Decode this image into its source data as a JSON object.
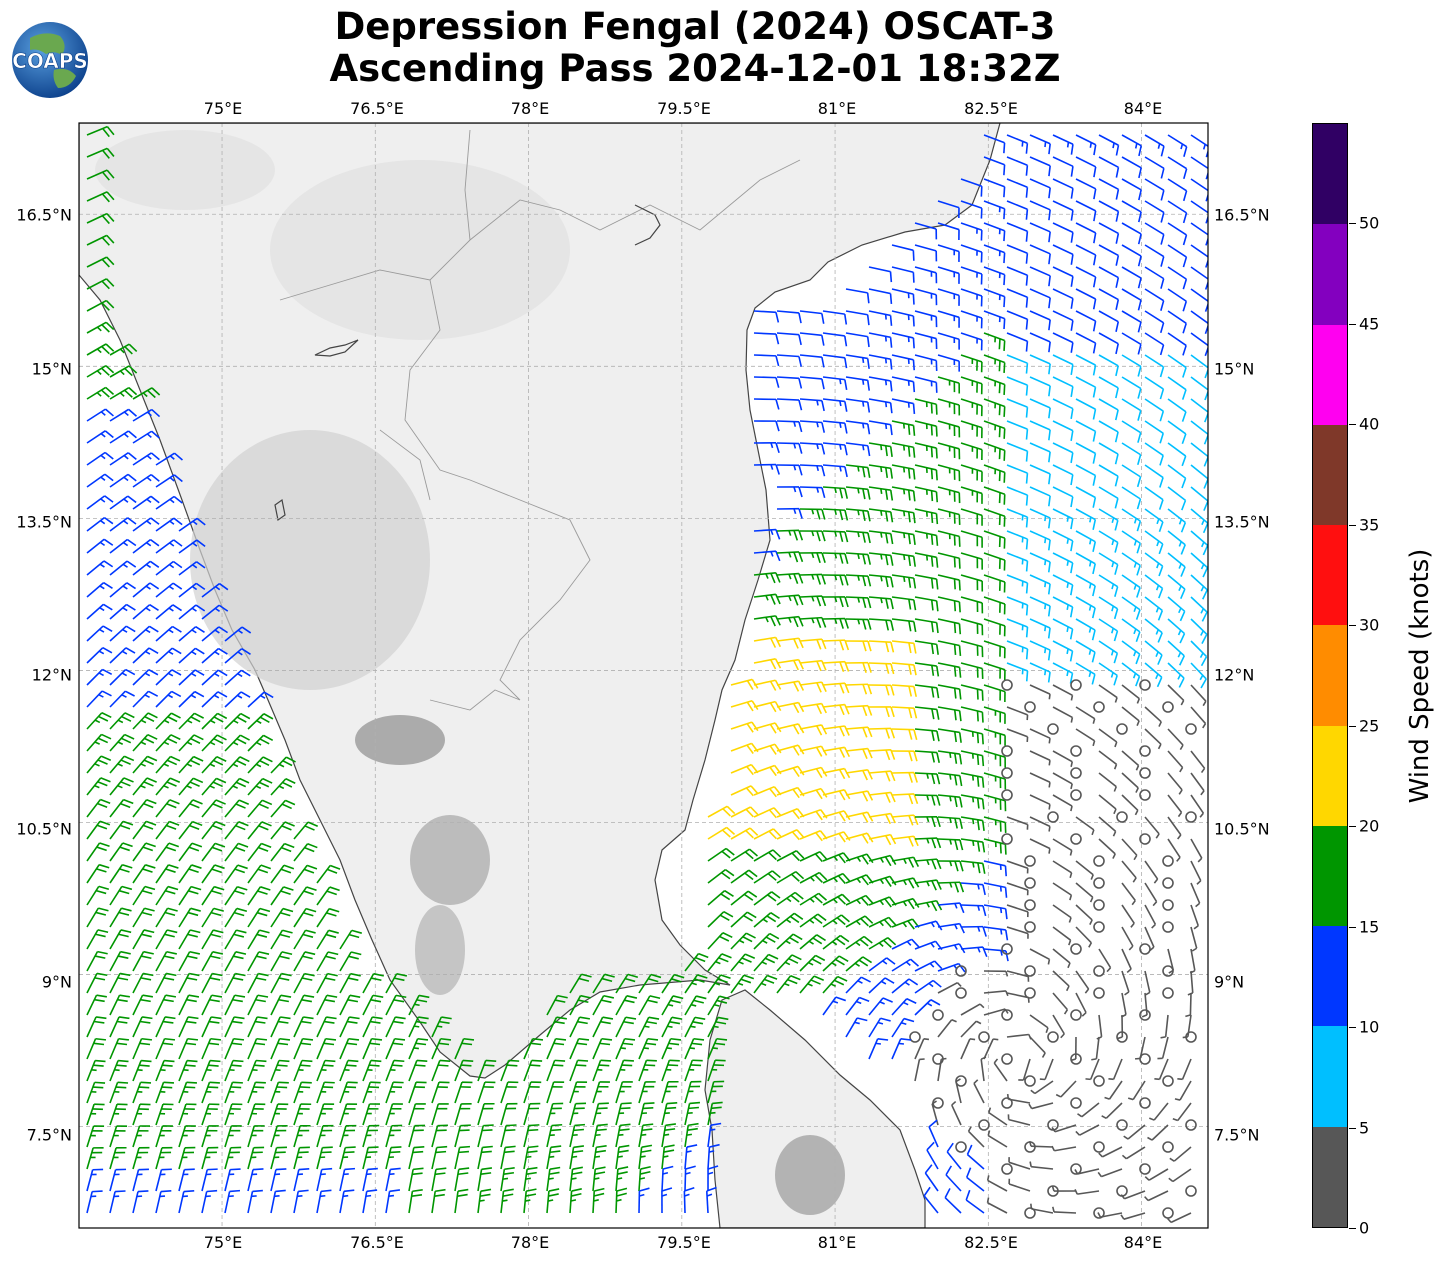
{
  "title": {
    "line1": "Depression Fengal (2024) OSCAT-3",
    "line2": "Ascending Pass 2024-12-01 18:32Z"
  },
  "logo": {
    "text": "COAPS"
  },
  "map": {
    "lon_range": [
      73.6,
      84.65
    ],
    "lat_range": [
      6.5,
      17.4
    ],
    "lon_ticks": [
      "75°E",
      "76.5°E",
      "78°E",
      "79.5°E",
      "81°E",
      "82.5°E",
      "84°E"
    ],
    "lat_ticks": [
      "16.5°N",
      "15°N",
      "13.5°N",
      "12°N",
      "10.5°N",
      "9°N",
      "7.5°N"
    ],
    "gridlines": true,
    "land_color": "#efefef",
    "ocean_color": "#ffffff",
    "coast_color": "#444444"
  },
  "colorbar": {
    "label": "Wind Speed (knots)",
    "tick_labels": [
      "0",
      "5",
      "10",
      "15",
      "20",
      "25",
      "30",
      "35",
      "40",
      "45",
      "50"
    ],
    "bins": [
      {
        "min": 0,
        "max": 5,
        "color": "#575757"
      },
      {
        "min": 5,
        "max": 10,
        "color": "#00bfff"
      },
      {
        "min": 10,
        "max": 15,
        "color": "#0037ff"
      },
      {
        "min": 15,
        "max": 20,
        "color": "#009600"
      },
      {
        "min": 20,
        "max": 25,
        "color": "#ffd700"
      },
      {
        "min": 25,
        "max": 30,
        "color": "#ff8c00"
      },
      {
        "min": 30,
        "max": 35,
        "color": "#ff0f0f"
      },
      {
        "min": 35,
        "max": 40,
        "color": "#7f3829"
      },
      {
        "min": 40,
        "max": 45,
        "color": "#ff00f0"
      },
      {
        "min": 45,
        "max": 50,
        "color": "#8300bf"
      },
      {
        "min": 50,
        "max": 55,
        "color": "#300064"
      }
    ]
  }
}
